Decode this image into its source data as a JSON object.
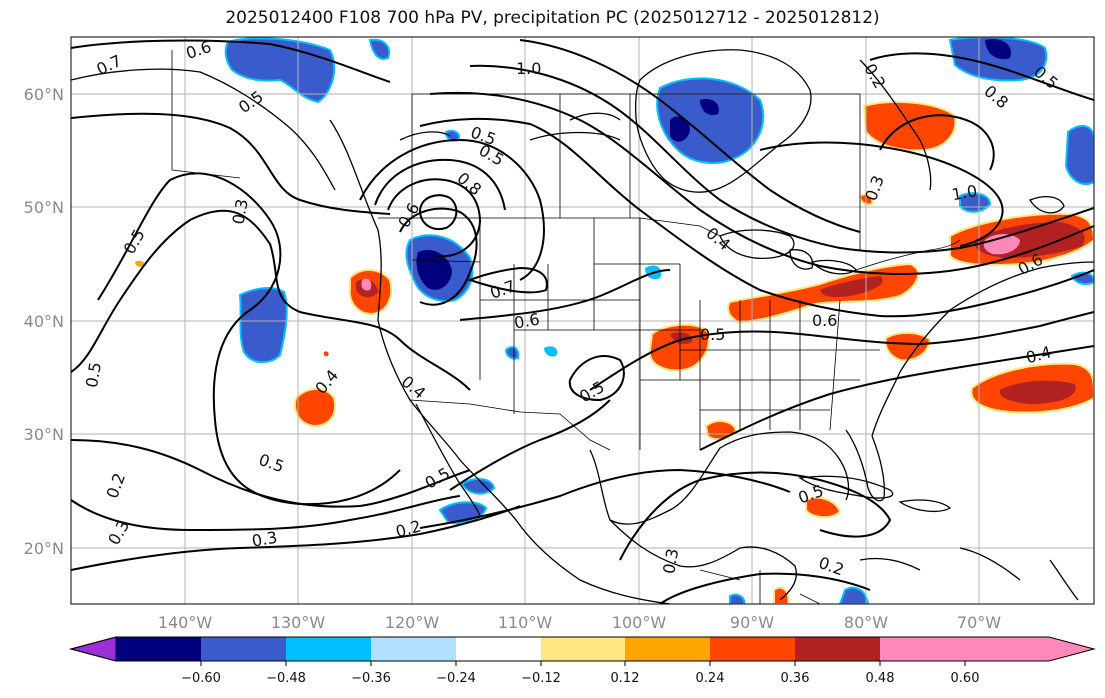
{
  "title": "2025012400 F108 700 hPa PV, precipitation PC (2025012712 - 2025012812)",
  "latitude_labels": [
    "60°N",
    "50°N",
    "40°N",
    "30°N",
    "20°N"
  ],
  "longitude_labels": [
    "140°W",
    "130°W",
    "120°W",
    "110°W",
    "100°W",
    "90°W",
    "80°W",
    "70°W"
  ],
  "contour_labels": [
    "0.7",
    "0.6",
    "1.0",
    "0.5",
    "0.3",
    "0.5",
    "0.8",
    "0.6",
    "0.5",
    "0.7",
    "0.6",
    "0.5",
    "0.5",
    "0.4",
    "0.4",
    "0.5",
    "0.5",
    "0.5",
    "0.2",
    "0.3",
    "0.3",
    "0.2",
    "0.3",
    "0.2",
    "0.5",
    "0.6",
    "1.0",
    "0.5",
    "0.4",
    "0.6",
    "0.5",
    "0.4",
    "0.3",
    "0.2",
    "0.8"
  ],
  "colorbar": {
    "ticks": [
      "−0.60",
      "−0.48",
      "−0.36",
      "−0.24",
      "−0.12",
      "0.12",
      "0.24",
      "0.36",
      "0.48",
      "0.60"
    ],
    "colors": [
      "#9b30d9",
      "#00007f",
      "#3a5bcb",
      "#00bfff",
      "#b0e0ff",
      "#ffffff",
      "#ffe680",
      "#ffa500",
      "#ff4500",
      "#b22222",
      "#ff88bb"
    ]
  }
}
